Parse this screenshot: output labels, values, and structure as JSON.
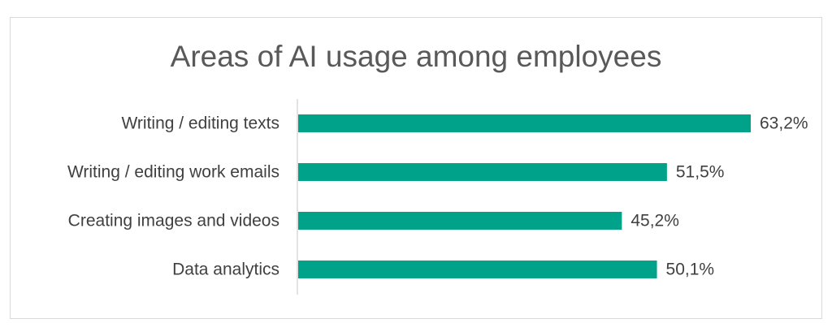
{
  "chart_data": {
    "type": "bar",
    "orientation": "horizontal",
    "title": "Areas of AI usage among employees",
    "categories": [
      "Writing / editing texts",
      "Writing / editing work emails",
      "Creating images and videos",
      "Data analytics"
    ],
    "values": [
      63.2,
      51.5,
      45.2,
      50.1
    ],
    "value_labels": [
      "63,2%",
      "51,5%",
      "45,2%",
      "50,1%"
    ],
    "xlim": [
      0,
      63.2
    ],
    "xlabel": "",
    "ylabel": "",
    "grid": false,
    "legend": "none",
    "colors": {
      "bar": "#00A389",
      "text": "#404040",
      "title": "#595959",
      "axis": "#d9d9d9"
    }
  }
}
